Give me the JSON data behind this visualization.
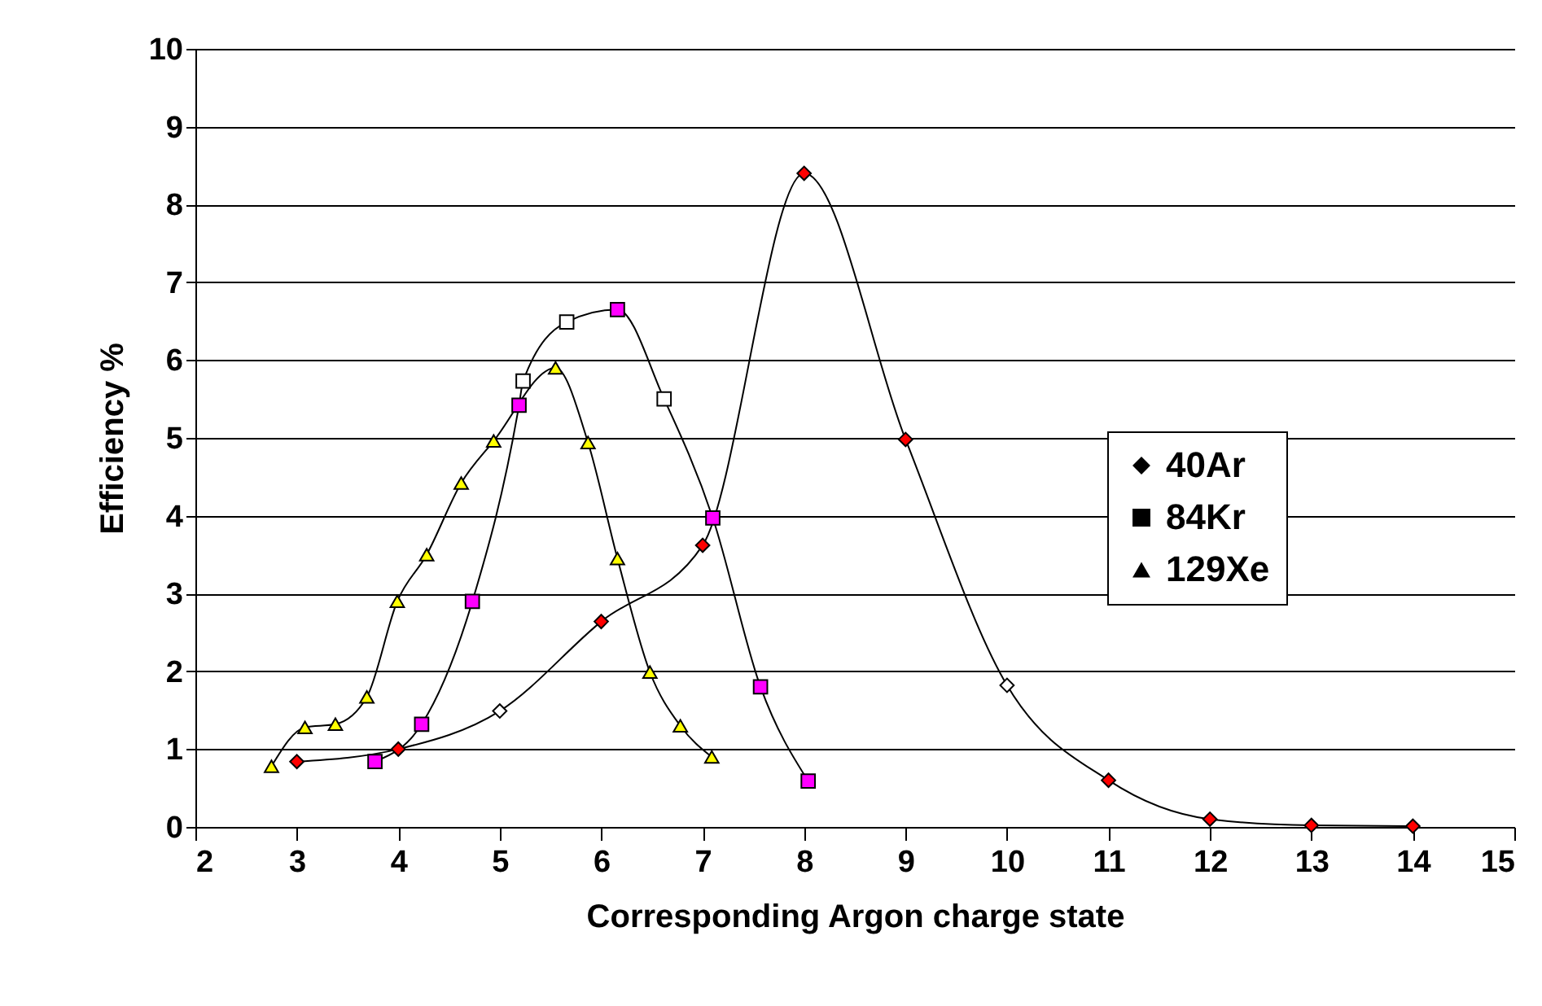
{
  "chart_data": {
    "type": "line",
    "xlabel": "Corresponding Argon charge state",
    "ylabel": "Efficiency %",
    "xlim": [
      2,
      15
    ],
    "xticks": [
      2,
      3,
      4,
      5,
      6,
      7,
      8,
      9,
      10,
      11,
      12,
      13,
      14,
      15
    ],
    "ylim": [
      0,
      10
    ],
    "yticks": [
      0,
      1,
      2,
      3,
      4,
      5,
      6,
      7,
      8,
      9,
      10
    ],
    "grid": "y",
    "legend": "right",
    "marker": "diamond",
    "line_style": "solid",
    "series": [
      {
        "name": "40Ar",
        "color": "#ff0000",
        "marker": "diamond",
        "x": [
          3,
          4,
          5,
          6,
          7,
          8,
          9,
          10,
          11,
          12,
          13,
          14
        ],
        "values": [
          0.84,
          1.0,
          1.49,
          2.64,
          3.62,
          8.4,
          4.98,
          1.82,
          0.6,
          0.1,
          0.02,
          0.01
        ],
        "colors": [
          "#ff0000",
          "#ff0000",
          "#ffffff",
          "#ff0000",
          "#ff0000",
          "#ff0000",
          "#ff0000",
          "#ffffff",
          "#ff0000",
          "#ff0000",
          "#ff0000",
          "#ff0000"
        ]
      },
      {
        "name": "84Kr",
        "color": "#ff00ff",
        "marker": "square",
        "x": [
          3.77,
          4.23,
          4.73,
          5.19,
          5.23,
          5.66,
          6.16,
          6.62,
          7.1,
          7.57,
          8.04
        ],
        "values": [
          0.84,
          1.32,
          2.9,
          5.42,
          5.73,
          6.49,
          6.65,
          5.5,
          3.97,
          1.8,
          0.59
        ],
        "colors": [
          "#ff00ff",
          "#ff00ff",
          "#ff00ff",
          "#ff00ff",
          "#ffffff",
          "#ffffff",
          "#ff00ff",
          "#ffffff",
          "#ff00ff",
          "#ff00ff",
          "#ff00ff"
        ]
      },
      {
        "name": "129Xe",
        "color": "#ffff00",
        "marker": "triangle",
        "x": [
          2.75,
          3.08,
          3.38,
          3.69,
          3.99,
          4.28,
          4.62,
          4.94,
          5.55,
          5.87,
          6.16,
          6.48,
          6.78,
          7.09
        ],
        "values": [
          0.78,
          1.28,
          1.32,
          1.67,
          2.9,
          3.5,
          4.42,
          4.96,
          5.9,
          4.94,
          3.45,
          1.99,
          1.3,
          0.9
        ]
      }
    ]
  }
}
